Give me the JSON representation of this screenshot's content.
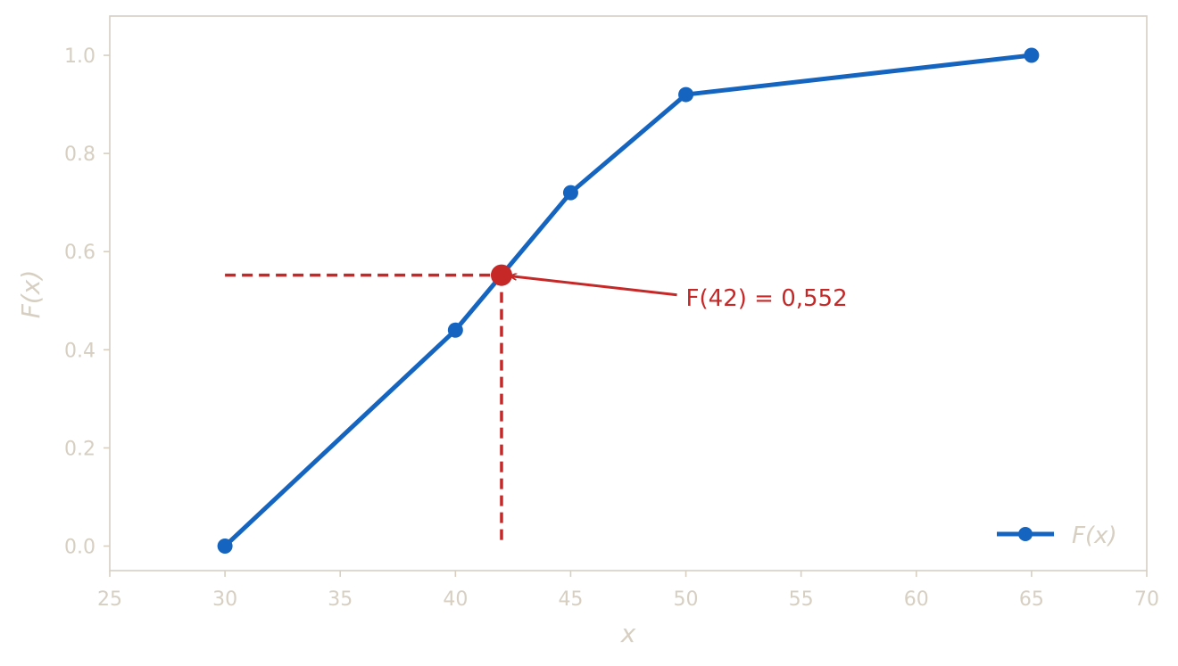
{
  "chart_data": {
    "type": "line",
    "xlabel": "x",
    "ylabel": "F(x)",
    "xlim": [
      25,
      70
    ],
    "ylim": [
      -0.05,
      1.08
    ],
    "xticks": [
      25,
      30,
      35,
      40,
      45,
      50,
      55,
      60,
      65,
      70
    ],
    "yticks": [
      0.0,
      0.2,
      0.4,
      0.6,
      0.8,
      1.0
    ],
    "xtick_labels": [
      "25",
      "30",
      "35",
      "40",
      "45",
      "50",
      "55",
      "60",
      "65",
      "70"
    ],
    "ytick_labels": [
      "0.0",
      "0.2",
      "0.4",
      "0.6",
      "0.8",
      "1.0"
    ],
    "grid": false,
    "legend_position": "bottom-right",
    "series": [
      {
        "name": "F(x)",
        "x": [
          30,
          40,
          45,
          50,
          65
        ],
        "y": [
          0.0,
          0.44,
          0.72,
          0.92,
          1.0
        ],
        "color": "#1565c0"
      }
    ],
    "highlight": {
      "x": 42,
      "y": 0.552,
      "color": "#c62828",
      "label": "F(42) = 0,552"
    },
    "colors": {
      "axis": "#d6cfc2",
      "series": "#1565c0",
      "highlight": "#c62828"
    }
  }
}
